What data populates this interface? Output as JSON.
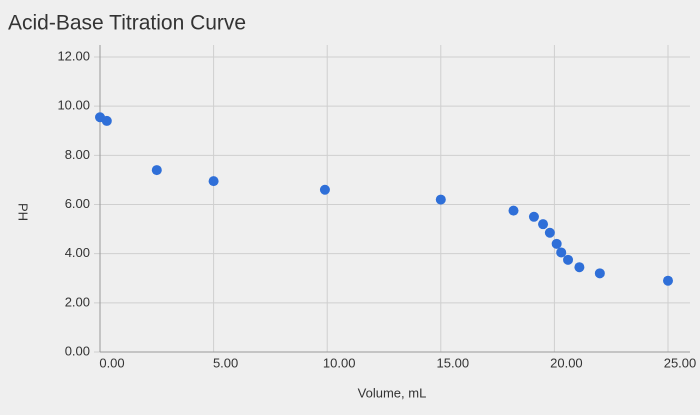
{
  "chart_data": {
    "type": "scatter",
    "title": "Acid-Base Titration Curve",
    "x_label": "Volume, mL",
    "y_label": "PH",
    "series": [
      {
        "color": "#2f6fd8",
        "x": [
          0,
          0.3,
          2.5,
          5.0,
          9.9,
          15.0,
          18.2,
          19.1,
          19.5,
          19.8,
          20.1,
          20.3,
          20.6,
          21.1,
          22.0,
          25.0
        ],
        "values": [
          9.55,
          9.4,
          7.4,
          6.95,
          6.6,
          6.2,
          5.75,
          5.5,
          5.2,
          4.85,
          4.4,
          4.05,
          3.75,
          3.45,
          3.2,
          2.9
        ]
      }
    ],
    "xlim": [
      0,
      25
    ],
    "ylim": [
      0,
      12
    ],
    "xticks": [
      {
        "value": 0,
        "label": "0.00"
      },
      {
        "value": 5,
        "label": "5.00"
      },
      {
        "value": 10,
        "label": "10.00"
      },
      {
        "value": 15,
        "label": "15.00"
      },
      {
        "value": 20,
        "label": "20.00"
      },
      {
        "value": 25,
        "label": "25.00"
      }
    ],
    "yticks": [
      {
        "value": 0,
        "label": "0.00"
      },
      {
        "value": 2,
        "label": "2.00"
      },
      {
        "value": 4,
        "label": "4.00"
      },
      {
        "value": 6,
        "label": "6.00"
      },
      {
        "value": 8,
        "label": "8.00"
      },
      {
        "value": 10,
        "label": "10.00"
      },
      {
        "value": 12,
        "label": "12.00"
      }
    ],
    "grid": true
  }
}
